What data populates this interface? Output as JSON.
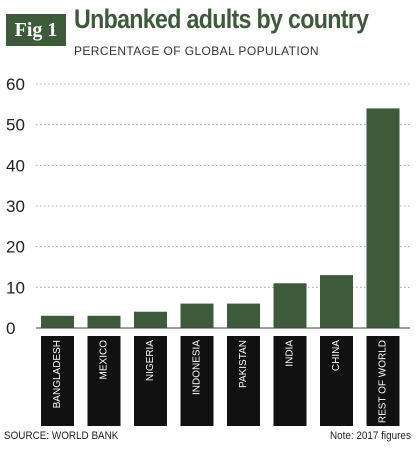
{
  "figure": {
    "badge": "Fig 1",
    "title": "Unbanked adults by country",
    "subtitle": "PERCENTAGE OF GLOBAL POPULATION",
    "source": "SOURCE: WORLD BANK",
    "note": "Note: 2017 figures"
  },
  "colors": {
    "bar": "#3d5a3a",
    "label_box": "#111111",
    "grid": "#999999",
    "text": "#222222"
  },
  "chart_data": {
    "type": "bar",
    "title": "Unbanked adults by country",
    "subtitle": "PERCENTAGE OF GLOBAL POPULATION",
    "xlabel": "",
    "ylabel": "",
    "categories": [
      "BANGLADESH",
      "MEXICO",
      "NIGERIA",
      "INDONESIA",
      "PAKISTAN",
      "INDIA",
      "CHINA",
      "REST OF WORLD"
    ],
    "values": [
      3,
      3,
      4,
      6,
      6,
      11,
      13,
      54
    ],
    "ylim": [
      0,
      60
    ],
    "yticks": [
      0,
      10,
      20,
      30,
      40,
      50,
      60
    ],
    "grid": true,
    "legend": "none"
  }
}
